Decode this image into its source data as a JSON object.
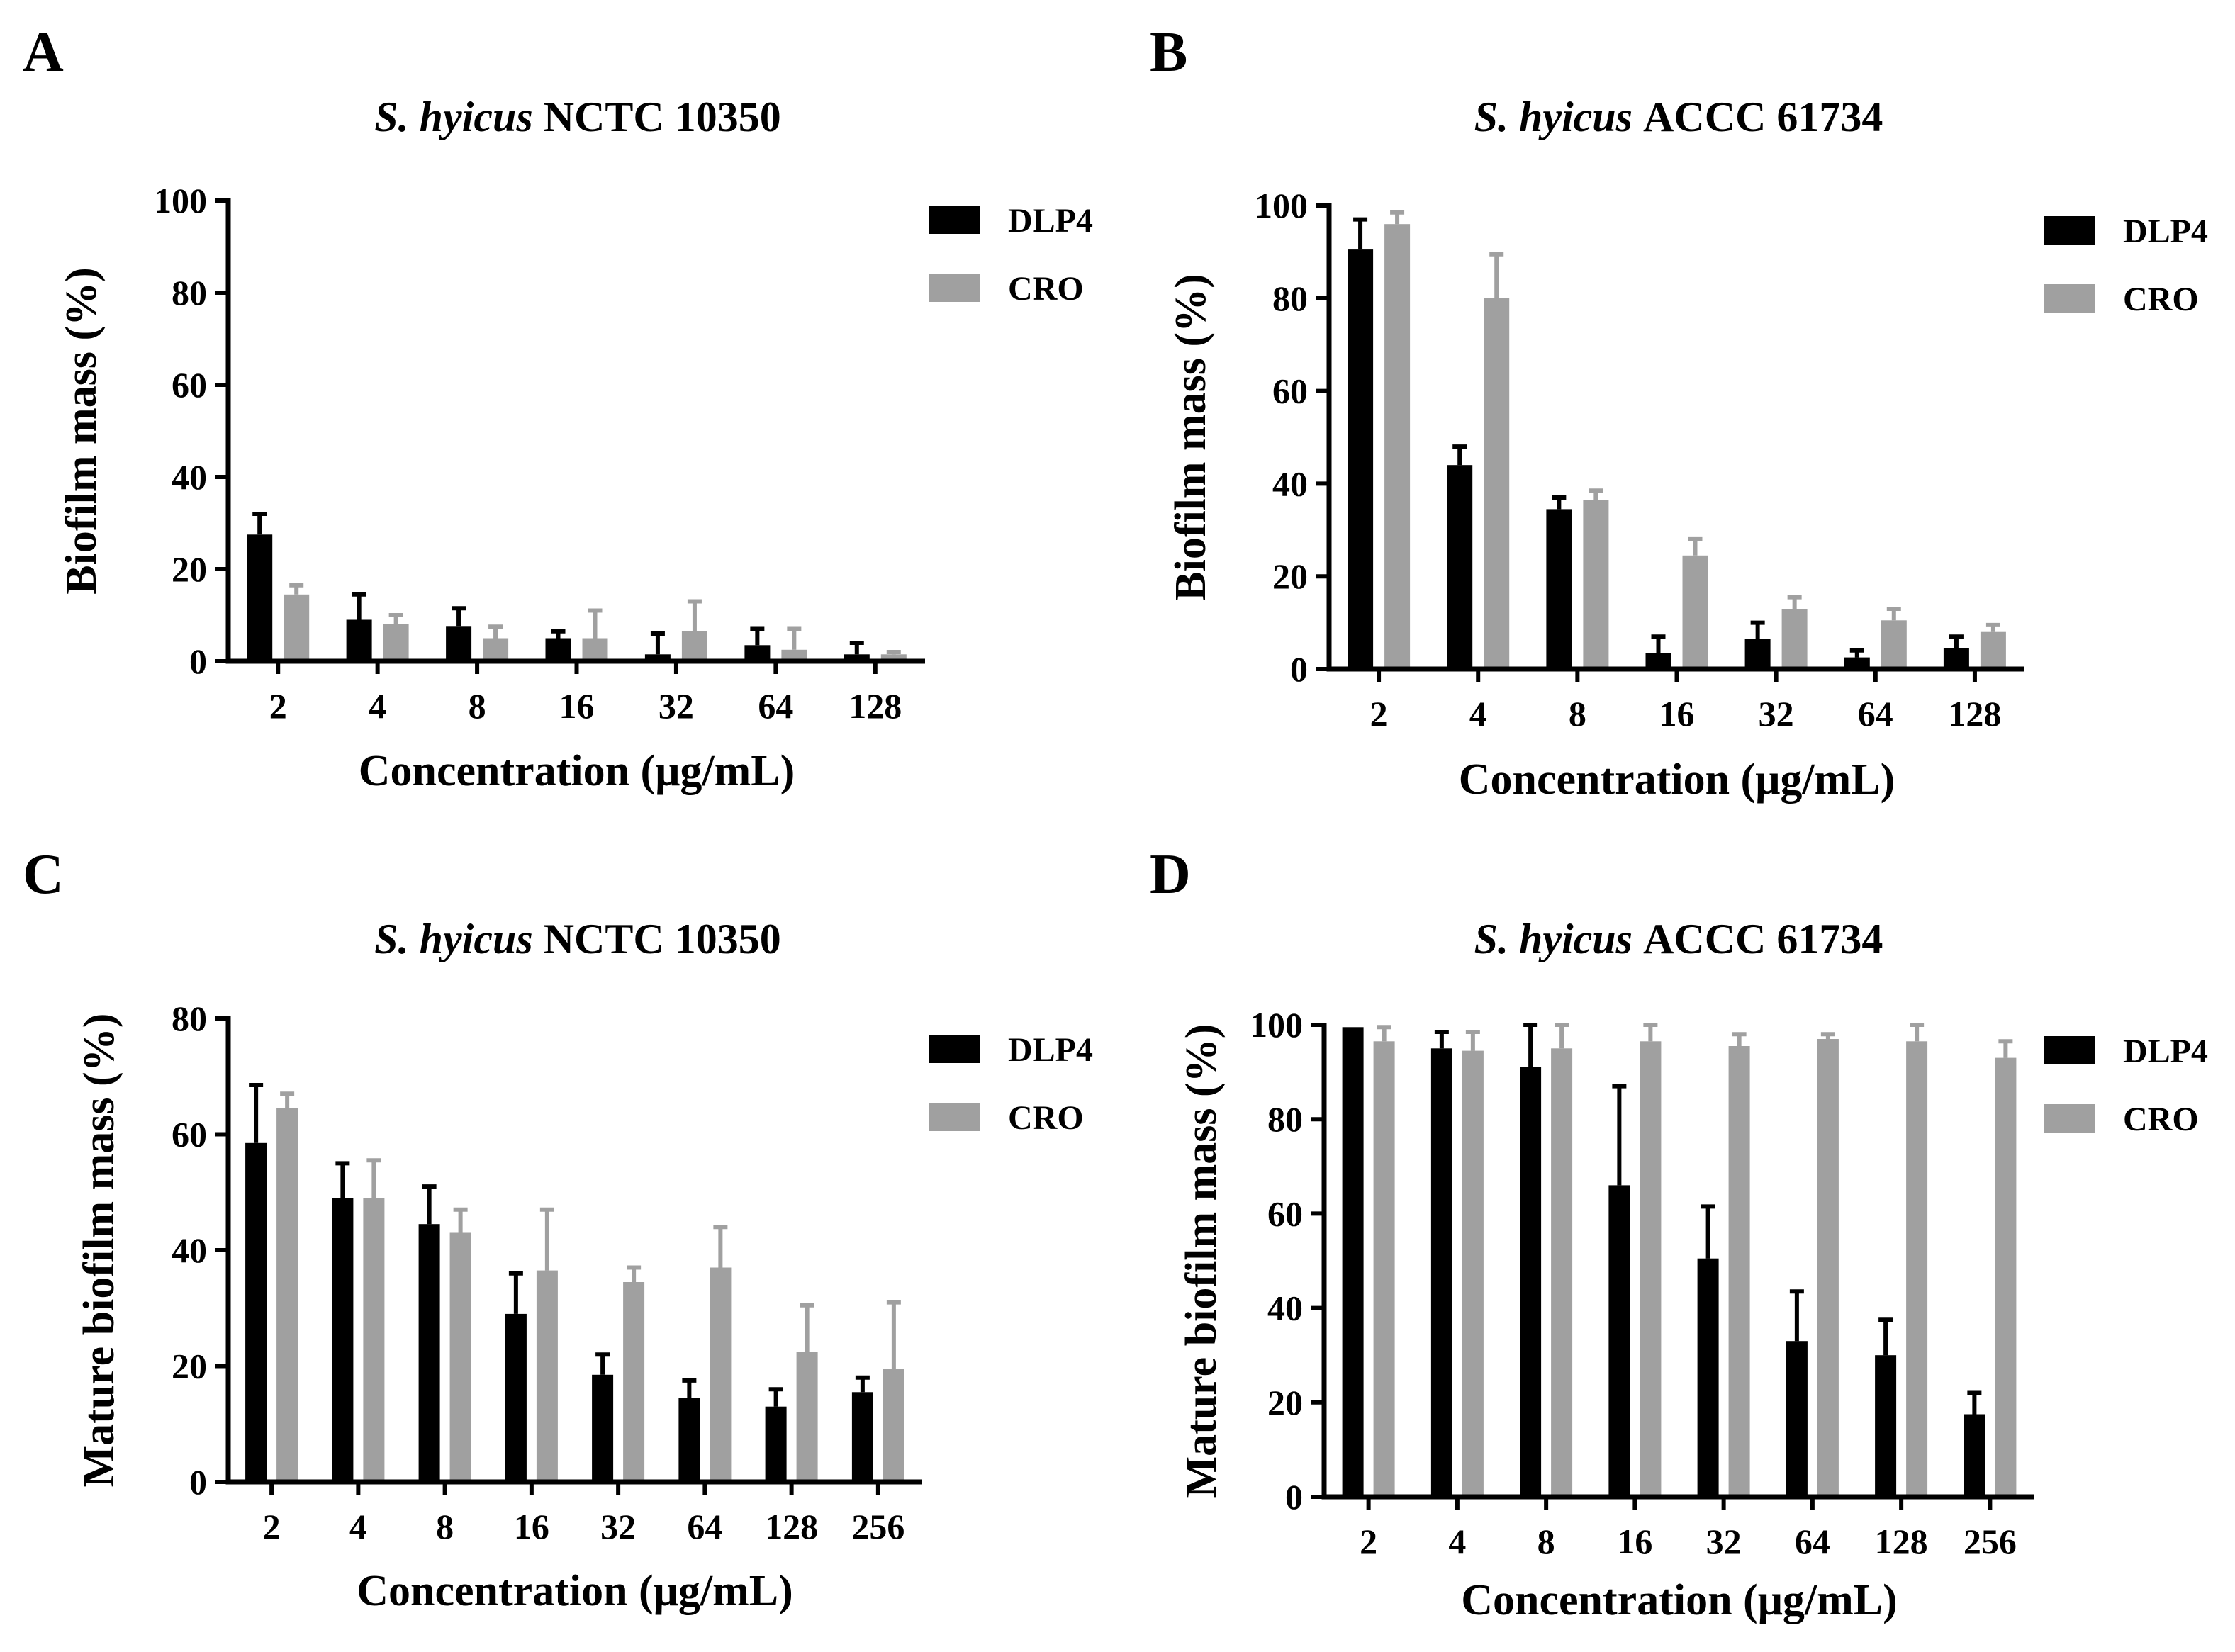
{
  "chart_data": [
    {
      "type": "bar",
      "panel": "A",
      "title": {
        "italic": "S. hyicus",
        "rest": " NCTC 10350"
      },
      "xlabel": "Concentration (μg/mL)",
      "ylabel": "Biofilm mass (%)",
      "ylim": [
        0,
        100
      ],
      "yticks": [
        0,
        20,
        40,
        60,
        80,
        100
      ],
      "categories": [
        "2",
        "4",
        "8",
        "16",
        "32",
        "64",
        "128"
      ],
      "series": [
        {
          "name": "DLP4",
          "color": "#000000",
          "values": [
            27.5,
            9,
            7.5,
            5,
            1.5,
            3.5,
            1.5
          ],
          "errors": [
            4.5,
            5.5,
            4,
            1.5,
            4.5,
            3.5,
            2.5
          ]
        },
        {
          "name": "CRO",
          "color": "#a0a0a0",
          "values": [
            14.5,
            8,
            5,
            5,
            6.5,
            2.5,
            1.5
          ],
          "errors": [
            2,
            2,
            2.5,
            6,
            6.5,
            4.5,
            0.5
          ]
        }
      ]
    },
    {
      "type": "bar",
      "panel": "B",
      "title": {
        "italic": "S. hyicus",
        "rest": " ACCC 61734"
      },
      "xlabel": "Concentration (μg/mL)",
      "ylabel": "Biofilm mass (%)",
      "ylim": [
        0,
        100
      ],
      "yticks": [
        0,
        20,
        40,
        60,
        80,
        100
      ],
      "categories": [
        "2",
        "4",
        "8",
        "16",
        "32",
        "64",
        "128"
      ],
      "series": [
        {
          "name": "DLP4",
          "color": "#000000",
          "values": [
            90.5,
            44,
            34.5,
            3.5,
            6.5,
            2.5,
            4.5
          ],
          "errors": [
            6.5,
            4,
            2.5,
            3.5,
            3.5,
            1.5,
            2.5
          ]
        },
        {
          "name": "CRO",
          "color": "#a0a0a0",
          "values": [
            96,
            80,
            36.5,
            24.5,
            13,
            10.5,
            8
          ],
          "errors": [
            2.5,
            9.5,
            2,
            3.5,
            2.5,
            2.5,
            1.5
          ]
        }
      ]
    },
    {
      "type": "bar",
      "panel": "C",
      "title": {
        "italic": "S. hyicus",
        "rest": " NCTC 10350"
      },
      "xlabel": "Concentration (μg/mL)",
      "ylabel": "Mature biofilm mass (%)",
      "ylim": [
        0,
        80
      ],
      "yticks": [
        0,
        20,
        40,
        60,
        80
      ],
      "categories": [
        "2",
        "4",
        "8",
        "16",
        "32",
        "64",
        "128",
        "256"
      ],
      "series": [
        {
          "name": "DLP4",
          "color": "#000000",
          "values": [
            58.5,
            49,
            44.5,
            29,
            18.5,
            14.5,
            13,
            15.5
          ],
          "errors": [
            10,
            6,
            6.5,
            7,
            3.5,
            3,
            3,
            2.5
          ]
        },
        {
          "name": "CRO",
          "color": "#a0a0a0",
          "values": [
            64.5,
            49,
            43,
            36.5,
            34.5,
            37,
            22.5,
            19.5
          ],
          "errors": [
            2.5,
            6.5,
            4,
            10.5,
            2.5,
            7,
            8,
            11.5
          ]
        }
      ]
    },
    {
      "type": "bar",
      "panel": "D",
      "title": {
        "italic": "S. hyicus",
        "rest": " ACCC 61734"
      },
      "xlabel": "Concentration (μg/mL)",
      "ylabel": "Mature biofilm mass (%)",
      "ylim": [
        0,
        100
      ],
      "yticks": [
        0,
        20,
        40,
        60,
        80,
        100
      ],
      "categories": [
        "2",
        "4",
        "8",
        "16",
        "32",
        "64",
        "128",
        "256"
      ],
      "series": [
        {
          "name": "DLP4",
          "color": "#000000",
          "values": [
            99.5,
            95,
            91,
            66,
            50.5,
            33,
            30,
            17.5
          ],
          "errors": [
            0,
            3.5,
            9,
            21,
            11,
            10.5,
            7.5,
            4.5
          ]
        },
        {
          "name": "CRO",
          "color": "#a0a0a0",
          "values": [
            96.5,
            94.5,
            95,
            96.5,
            95.5,
            97,
            96.5,
            93
          ],
          "errors": [
            3,
            4,
            5,
            3.5,
            2.5,
            1,
            3.5,
            3.5
          ]
        }
      ]
    }
  ]
}
